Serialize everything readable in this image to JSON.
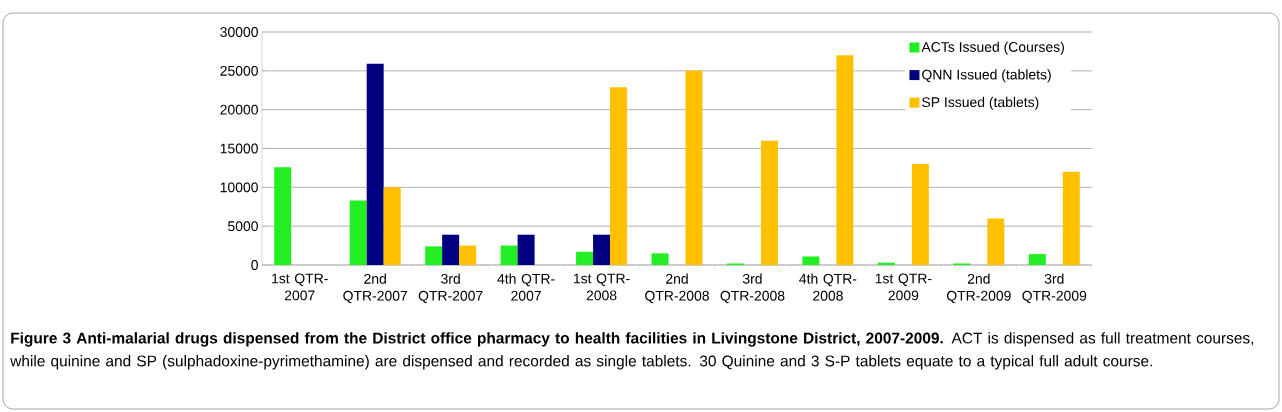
{
  "chart_data": {
    "type": "bar",
    "categories": [
      "1st QTR-2007",
      "2nd QTR-2007",
      "3rd QTR-2007",
      "4th QTR-2007",
      "1st QTR-2008",
      "2nd QTR-2008",
      "3rd QTR-2008",
      "4th QTR-2008",
      "1st QTR-2009",
      "2nd QTR-2009",
      "3rd QTR-2009"
    ],
    "series": [
      {
        "name": "ACTs Issued (Courses)",
        "color": "#22ee22",
        "values": [
          12600,
          8300,
          2400,
          2500,
          1700,
          1500,
          200,
          1100,
          300,
          200,
          1400
        ]
      },
      {
        "name": "QNN Issued (tablets)",
        "color": "#000080",
        "values": [
          null,
          25900,
          3900,
          3900,
          3900,
          null,
          null,
          null,
          null,
          null,
          null
        ]
      },
      {
        "name": "SP Issued (tablets)",
        "color": "#ffc000",
        "values": [
          null,
          10000,
          2500,
          null,
          22900,
          25000,
          16000,
          27000,
          13000,
          6000,
          12000
        ]
      }
    ],
    "ylim": [
      0,
      30000
    ],
    "yticks": [
      0,
      5000,
      10000,
      15000,
      20000,
      25000,
      30000
    ],
    "grid": "y",
    "legend": "top right",
    "annotations": [
      "**Figure 3 Anti-malarial drugs dispensed from the District office pharmacy to health facilities in Livingstone District, 2007-2009.** ACT is dispensed as full treatment courses, while quinine and SP (sulphadoxine-pyrimethamine) are dispensed and recorded as single tablets. 30 Quinine and 3 S-P tablets equate to a typical full adult course."
    ]
  }
}
